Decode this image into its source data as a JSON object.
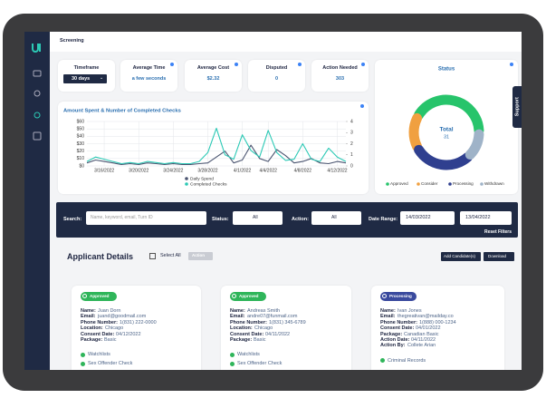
{
  "header": {
    "title": "Screening"
  },
  "support": "Support",
  "stats": [
    {
      "label": "Timeframe",
      "value": "30 days"
    },
    {
      "label": "Average Time",
      "value": "a few seconds"
    },
    {
      "label": "Average Cost",
      "value": "$2.32"
    },
    {
      "label": "Disputed",
      "value": "0"
    },
    {
      "label": "Action Needed",
      "value": "303"
    }
  ],
  "chart_data": [
    {
      "type": "line",
      "title": "Amount Spent & Number of Completed Checks",
      "categories": [
        null,
        null,
        "3/16/2022",
        null,
        null,
        null,
        "3/20/2022",
        null,
        null,
        null,
        "3/24/2022",
        null,
        null,
        null,
        "3/28/2022",
        null,
        null,
        null,
        "4/1/2022",
        null,
        null,
        "4/4/2022",
        null,
        null,
        null,
        "4/8/2022",
        null,
        null,
        null,
        "4/12/2022",
        null
      ],
      "series": [
        {
          "name": "Daily Spend",
          "color": "#4a5470",
          "values": [
            4,
            8,
            6,
            4,
            2,
            3,
            2,
            4,
            3,
            2,
            3,
            2,
            2,
            3,
            4,
            12,
            20,
            4,
            8,
            28,
            10,
            6,
            22,
            14,
            4,
            6,
            10,
            4,
            3,
            6,
            4
          ]
        },
        {
          "name": "Completed Checks",
          "color": "#2cc9b5",
          "axis": "y2",
          "values": [
            0.4,
            0.8,
            0.6,
            0.4,
            0.2,
            0.3,
            0.2,
            0.4,
            0.3,
            0.2,
            0.3,
            0.2,
            0.2,
            0.4,
            1.2,
            3.4,
            1,
            0.6,
            2.8,
            1.4,
            0.8,
            3.2,
            1.2,
            0.5,
            0.6,
            2,
            0.6,
            0.4,
            1.6,
            0.8,
            0.4
          ]
        }
      ],
      "ylim": [
        0,
        60
      ],
      "yticks": [
        {
          "value": 0,
          "label": "$0"
        },
        {
          "value": 10,
          "label": "$10"
        },
        {
          "value": 20,
          "label": "$20"
        },
        {
          "value": 30,
          "label": "$30"
        },
        {
          "value": 40,
          "label": "$40"
        },
        {
          "value": 50,
          "label": "$50"
        },
        {
          "value": 60,
          "label": "$60"
        }
      ],
      "y2lim": [
        0,
        4
      ],
      "y2ticks": [
        0,
        1,
        2,
        3,
        4
      ],
      "grid": true
    },
    {
      "type": "pie",
      "title": "Status",
      "center_label": "Total",
      "total": 31,
      "categories": [
        "Approved",
        "Consider",
        "Processing",
        "Withdrawn"
      ],
      "values": [
        13,
        5,
        9,
        4
      ],
      "colors": [
        "#27c46b",
        "#f0a040",
        "#2f3f8f",
        "#9fb3c8"
      ]
    }
  ],
  "filters": {
    "search_label": "Search:",
    "search_placeholder": "Name, keyword, email, Turn ID",
    "status_label": "Status:",
    "status_value": "All",
    "action_label": "Action:",
    "action_value": "All",
    "date_label": "Date Range:",
    "date_from": "14/03/2022",
    "date_to": "13/04/2022",
    "reset": "Reset Filters"
  },
  "applicants": {
    "title": "Applicant Details",
    "select_all": "Select All",
    "action_button": "Action",
    "add_button": "Add Candidate(s)",
    "download_button": "Download",
    "cards": [
      {
        "status": "Approved",
        "color": "#2fb55a",
        "fields": [
          {
            "label": "Name:",
            "value": "Juan Dorn"
          },
          {
            "label": "Email:",
            "value": "juand@goodmail.com"
          },
          {
            "label": "Phone Number:",
            "value": "1(831) 222-0000"
          },
          {
            "label": "Location:",
            "value": "Chicago"
          },
          {
            "label": "Consent Date:",
            "value": "04/12/2022"
          },
          {
            "label": "Package:",
            "value": "Basic"
          }
        ],
        "checks": [
          "Watchlists",
          "Sex Offender Check"
        ]
      },
      {
        "status": "Approved",
        "color": "#2fb55a",
        "fields": [
          {
            "label": "Name:",
            "value": "Andreas Smith"
          },
          {
            "label": "Email:",
            "value": "andre07@funmail.com"
          },
          {
            "label": "Phone Number:",
            "value": "1(831) 345-6789"
          },
          {
            "label": "Location:",
            "value": "Chicago"
          },
          {
            "label": "Consent Date:",
            "value": "04/11/2022"
          },
          {
            "label": "Package:",
            "value": "Basic"
          }
        ],
        "checks": [
          "Watchlists",
          "Sex Offender Check"
        ]
      },
      {
        "status": "Processing",
        "color": "#3a4a9e",
        "fields": [
          {
            "label": "Name:",
            "value": "Ivan Jones"
          },
          {
            "label": "Email:",
            "value": "thegreativan@mailday.co"
          },
          {
            "label": "Phone Number:",
            "value": "1(888) 000-1234"
          },
          {
            "label": "Consent Date:",
            "value": "04/01/2022"
          },
          {
            "label": "Package:",
            "value": "Canadian Basic"
          },
          {
            "label": "Action Date:",
            "value": "04/11/2022"
          },
          {
            "label": "Action By:",
            "value": "Collete Arian"
          }
        ],
        "checks": [
          "Criminal Records"
        ]
      }
    ]
  }
}
